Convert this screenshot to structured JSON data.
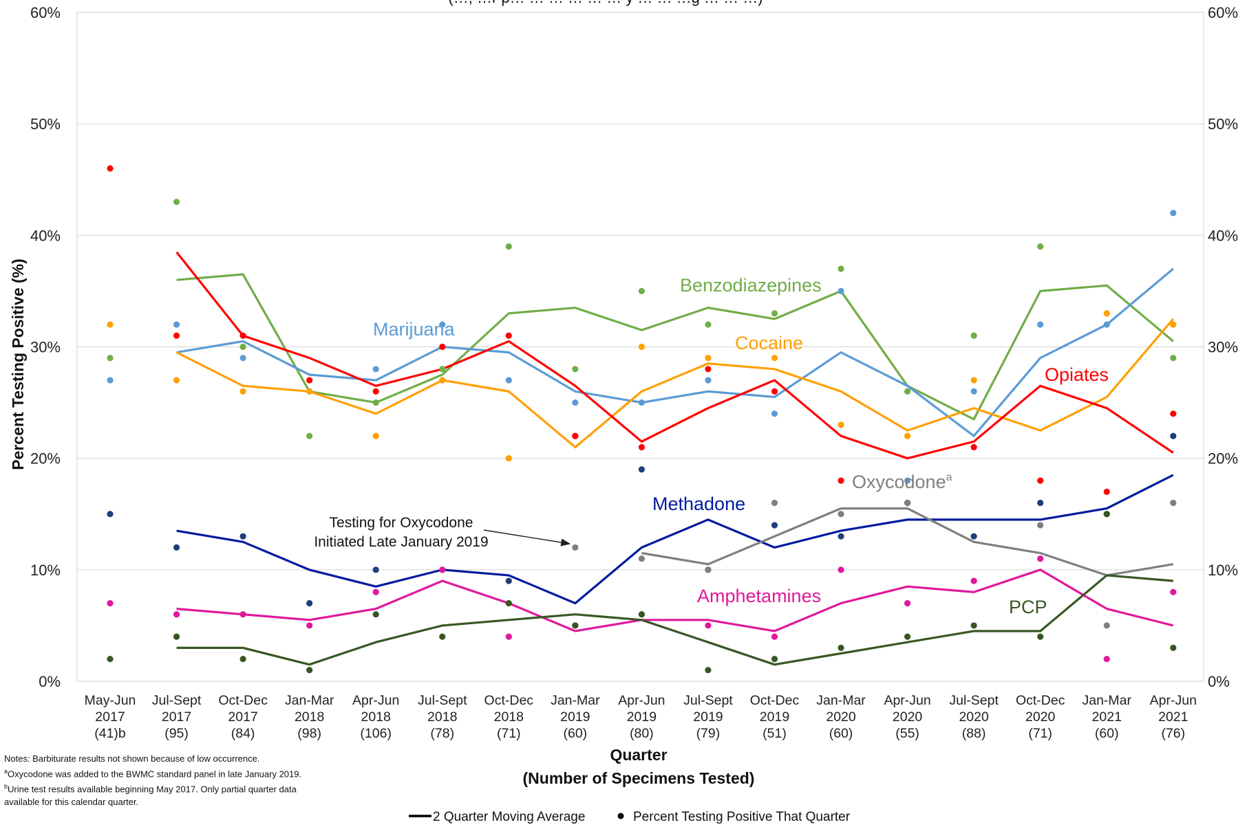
{
  "chart_data": {
    "type": "line",
    "ylabel": "Percent Testing Positive (%)",
    "xlabel_line1": "Quarter",
    "xlabel_line2": "(Number of Specimens Tested)",
    "ylim": [
      0,
      60
    ],
    "yticks": [
      0,
      10,
      20,
      30,
      40,
      50,
      60
    ],
    "ytick_labels": [
      "0%",
      "10%",
      "20%",
      "30%",
      "40%",
      "50%",
      "60%"
    ],
    "grid": true,
    "categories": [
      [
        "May-Jun",
        "2017",
        "(41)b"
      ],
      [
        "Jul-Sept",
        "2017",
        "(95)"
      ],
      [
        "Oct-Dec",
        "2017",
        "(84)"
      ],
      [
        "Jan-Mar",
        "2018",
        "(98)"
      ],
      [
        "Apr-Jun",
        "2018",
        "(106)"
      ],
      [
        "Jul-Sept",
        "2018",
        "(78)"
      ],
      [
        "Oct-Dec",
        "2018",
        "(71)"
      ],
      [
        "Jan-Mar",
        "2019",
        "(60)"
      ],
      [
        "Apr-Jun",
        "2019",
        "(80)"
      ],
      [
        "Jul-Sept",
        "2019",
        "(79)"
      ],
      [
        "Oct-Dec",
        "2019",
        "(51)"
      ],
      [
        "Jan-Mar",
        "2020",
        "(60)"
      ],
      [
        "Apr-Jun",
        "2020",
        "(55)"
      ],
      [
        "Jul-Sept",
        "2020",
        "(88)"
      ],
      [
        "Oct-Dec",
        "2020",
        "(71)"
      ],
      [
        "Jan-Mar",
        "2021",
        "(60)"
      ],
      [
        "Apr-Jun",
        "2021",
        "(76)"
      ]
    ],
    "series": [
      {
        "name": "Benzodiazepines",
        "color": "#70ad47",
        "points": [
          29,
          43,
          30,
          22,
          25,
          28,
          39,
          28,
          35,
          32,
          33,
          37,
          26,
          31,
          39,
          32,
          29
        ],
        "moving_avg": [
          null,
          36,
          36.5,
          26,
          25,
          27.5,
          33,
          33.5,
          31.5,
          33.5,
          32.5,
          35,
          26.5,
          23.5,
          35,
          35.5,
          30.5
        ]
      },
      {
        "name": "Marijuana",
        "color": "#5b9bd5",
        "points": [
          27,
          32,
          29,
          26,
          28,
          32,
          27,
          25,
          25,
          27,
          24,
          35,
          18,
          26,
          32,
          32,
          42
        ],
        "moving_avg": [
          null,
          29.5,
          30.5,
          27.5,
          27,
          30,
          29.5,
          26,
          25,
          26,
          25.5,
          29.5,
          26.5,
          22,
          29,
          32,
          37
        ]
      },
      {
        "name": "Cocaine",
        "color": "#ffa000",
        "points": [
          32,
          27,
          26,
          26,
          22,
          27,
          20,
          22,
          30,
          29,
          29,
          23,
          22,
          27,
          18,
          33,
          32
        ],
        "moving_avg": [
          null,
          29.5,
          26.5,
          26,
          24,
          27,
          26,
          21,
          26,
          28.5,
          28,
          26,
          22.5,
          24.5,
          22.5,
          25.5,
          32.5
        ]
      },
      {
        "name": "Opiates",
        "color": "#ff0000",
        "points": [
          46,
          31,
          31,
          27,
          26,
          30,
          31,
          22,
          21,
          28,
          26,
          18,
          16,
          21,
          18,
          17,
          24
        ],
        "moving_avg": [
          null,
          38.5,
          31,
          29,
          26.5,
          28,
          30.5,
          26.5,
          21.5,
          24.5,
          27,
          22,
          20,
          21.5,
          26.5,
          24.5,
          20.5
        ]
      },
      {
        "name": "Methadone",
        "color": "#001b9e",
        "dot_color": "#1f3f7a",
        "points": [
          15,
          12,
          13,
          7,
          10,
          10,
          9,
          5,
          19,
          10,
          14,
          13,
          16,
          13,
          16,
          15,
          22
        ],
        "moving_avg": [
          null,
          13.5,
          12.5,
          10,
          8.5,
          10,
          9.5,
          7,
          12,
          14.5,
          12,
          13.5,
          14.5,
          14.5,
          14.5,
          15.5,
          18.5
        ]
      },
      {
        "name": "Oxycodone",
        "superscript": "a",
        "color": "#7f7f7f",
        "points": [
          null,
          null,
          null,
          null,
          null,
          null,
          null,
          12,
          11,
          10,
          16,
          15,
          16,
          9,
          14,
          5,
          16
        ],
        "moving_avg": [
          null,
          null,
          null,
          null,
          null,
          null,
          null,
          null,
          11.5,
          10.5,
          13,
          15.5,
          15.5,
          12.5,
          11.5,
          9.5,
          10.5
        ]
      },
      {
        "name": "Amphetamines",
        "color": "#e0189c",
        "points": [
          7,
          6,
          6,
          5,
          8,
          10,
          4,
          5,
          6,
          5,
          4,
          10,
          7,
          9,
          11,
          2,
          8
        ],
        "moving_avg": [
          null,
          6.5,
          6,
          5.5,
          6.5,
          9,
          7,
          4.5,
          5.5,
          5.5,
          4.5,
          7,
          8.5,
          8,
          10,
          6.5,
          5
        ]
      },
      {
        "name": "PCP",
        "color": "#385723",
        "points": [
          2,
          4,
          2,
          1,
          6,
          4,
          7,
          5,
          6,
          1,
          2,
          3,
          4,
          5,
          4,
          15,
          3
        ],
        "moving_avg": [
          null,
          3,
          3,
          1.5,
          3.5,
          5,
          5.5,
          6,
          5.5,
          3.5,
          1.5,
          2.5,
          3.5,
          4.5,
          4.5,
          9.5,
          9
        ]
      }
    ],
    "annotation": {
      "line1": "Testing for Oxycodone",
      "line2": "Initiated Late January 2019",
      "arrow_to_index": 7
    },
    "title_partial": "(…, …r p… … … … … … y … … …g … … …)",
    "legend": {
      "line_label": "2 Quarter Moving Average",
      "dot_label": "Percent Testing Positive That Quarter"
    }
  },
  "notes": {
    "line1": "Notes: Barbiturate results not shown because of low occurrence.",
    "line2_sup": "a",
    "line2": "Oxycodone was added to the BWMC standard panel in late January 2019.",
    "line3_sup": "b",
    "line3": "Urine test results available beginning May 2017. Only partial quarter data",
    "line4": "available for this calendar quarter."
  }
}
